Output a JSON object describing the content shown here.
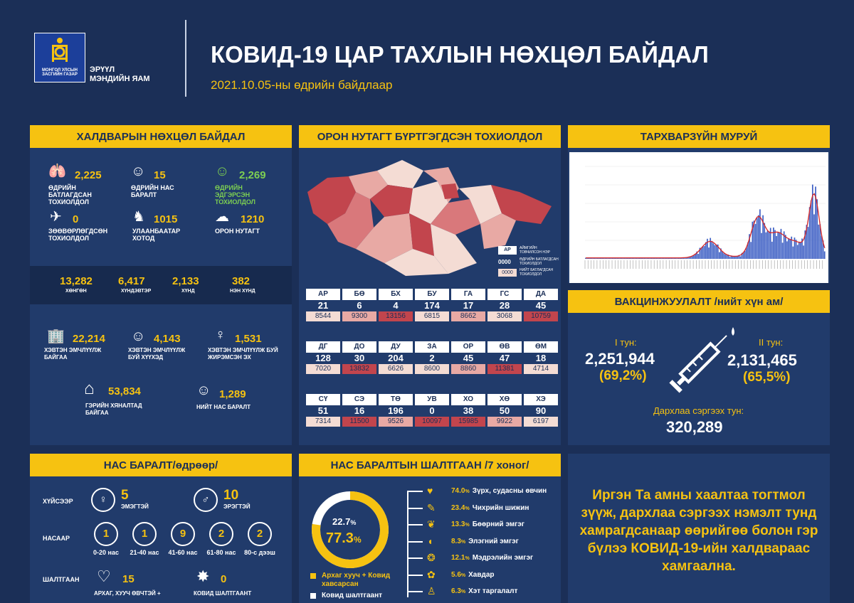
{
  "header": {
    "ministry_line1": "ЭРҮҮЛ",
    "ministry_line2": "МЭНДИЙН ЯАМ",
    "seal_line1": "МОНГОЛ УЛСЫН",
    "seal_line2": "ЗАСГИЙН ГАЗАР",
    "title": "КОВИД-19 ЦАР ТАХЛЫН НӨХЦӨЛ БАЙДАЛ",
    "subtitle": "2021.10.05-ны өдрийн байдлаар"
  },
  "infection": {
    "heading": "ХАЛДВАРЫН НӨХЦӨЛ БАЙДАЛ",
    "daily_cases": {
      "value": "2,225",
      "label": "ӨДРИЙН БАТЛАГДСАН ТОХИОЛДОЛ"
    },
    "daily_deaths": {
      "value": "15",
      "label": "ӨДРИЙН НАС БАРАЛТ"
    },
    "daily_recovered": {
      "value": "2,269",
      "label": "ӨДРИЙН ЭДГЭРСЭН ТОХИОЛДОЛ"
    },
    "imported": {
      "value": "0",
      "label": "ЗӨӨВӨРЛӨГДСӨН ТОХИОЛДОЛ"
    },
    "ulaanbaatar": {
      "value": "1015",
      "label": "УЛААНБААТАР ХОТОД"
    },
    "rural": {
      "value": "1210",
      "label": "ОРОН НУТАГТ"
    },
    "severity": [
      {
        "value": "13,282",
        "label": "ХӨНГӨН"
      },
      {
        "value": "6,417",
        "label": "ХҮНДЭВТЭР"
      },
      {
        "value": "2,133",
        "label": "ХҮНД"
      },
      {
        "value": "382",
        "label": "НЭН ХҮНД"
      }
    ],
    "hospital": {
      "value": "22,214",
      "label": "ХЭВТЭН ЭМЧЛҮҮЛЖ БАЙГАА"
    },
    "children": {
      "value": "4,143",
      "label": "ХЭВТЭН ЭМЧЛҮҮЛЖ БУЙ ХҮҮХЭД"
    },
    "pregnant": {
      "value": "1,531",
      "label": "ХЭВТЭН ЭМЧЛҮҮЛЖ БУЙ ЖИРЭМСЭН ЭХ"
    },
    "home": {
      "value": "53,834",
      "label": "ГЭРИЙН ХЯНАЛТАД БАЙГАА"
    },
    "total_deaths": {
      "value": "1,289",
      "label": "НИЙТ НАС БАРАЛТ"
    }
  },
  "regional": {
    "heading": "ОРОН НУТАГТ БҮРТГЭГДСЭН ТОХИОЛДОЛ",
    "legend_code": "АР",
    "legend_line1": "АЙМГИЙН ТОВЧИЛСОН НЭР",
    "legend_zero1": "0000",
    "legend_line2": "ӨДРИЙН БАТЛАГДСАН ТОХИОЛДОЛ",
    "legend_zero2": "0000",
    "legend_line3": "НИЙТ БАТЛАГДСАН ТОХИОЛДОЛ",
    "rows": [
      [
        {
          "c": "АР",
          "d": "21",
          "t": "8544"
        },
        {
          "c": "БӨ",
          "d": "6",
          "t": "9300"
        },
        {
          "c": "БХ",
          "d": "4",
          "t": "13156"
        },
        {
          "c": "БУ",
          "d": "174",
          "t": "6815"
        },
        {
          "c": "ГА",
          "d": "17",
          "t": "8662"
        },
        {
          "c": "ГС",
          "d": "28",
          "t": "3068"
        },
        {
          "c": "ДА",
          "d": "45",
          "t": "10759"
        }
      ],
      [
        {
          "c": "ДГ",
          "d": "128",
          "t": "7020"
        },
        {
          "c": "ДО",
          "d": "30",
          "t": "13832"
        },
        {
          "c": "ДУ",
          "d": "204",
          "t": "6626"
        },
        {
          "c": "ЗА",
          "d": "2",
          "t": "8600"
        },
        {
          "c": "ОР",
          "d": "45",
          "t": "8860"
        },
        {
          "c": "ӨВ",
          "d": "47",
          "t": "11381"
        },
        {
          "c": "ӨМ",
          "d": "18",
          "t": "4714"
        }
      ],
      [
        {
          "c": "СҮ",
          "d": "51",
          "t": "7314"
        },
        {
          "c": "СЭ",
          "d": "16",
          "t": "11500"
        },
        {
          "c": "ТӨ",
          "d": "196",
          "t": "9526"
        },
        {
          "c": "УВ",
          "d": "0",
          "t": "10097"
        },
        {
          "c": "ХО",
          "d": "38",
          "t": "15985"
        },
        {
          "c": "ХӨ",
          "d": "50",
          "t": "9922"
        },
        {
          "c": "ХЭ",
          "d": "90",
          "t": "6197"
        }
      ]
    ]
  },
  "curve": {
    "heading": "ТАРХВАРЗҮЙН МУРУЙ"
  },
  "vaccine": {
    "heading": "ВАКЦИНЖУУЛАЛТ /нийт хүн ам/",
    "dose1_label": "I тун:",
    "dose1_value": "2,251,944",
    "dose1_pct": "(69,2%)",
    "dose2_label": "II тун:",
    "dose2_value": "2,131,465",
    "dose2_pct": "(65,5%)",
    "booster_label": "Дархлаа сэргээх тун:",
    "booster_value": "320,289"
  },
  "deaths_daily": {
    "heading": "НАС БАРАЛТ/өдрөөр/",
    "by_sex": "ХҮЙСЭЭР",
    "female": {
      "value": "5",
      "label": "ЭМЭГТЭЙ"
    },
    "male": {
      "value": "10",
      "label": "ЭРЭГТЭЙ"
    },
    "by_age": "НАСААР",
    "ages": [
      {
        "value": "1",
        "label": "0-20 нас"
      },
      {
        "value": "1",
        "label": "21-40 нас"
      },
      {
        "value": "9",
        "label": "41-60 нас"
      },
      {
        "value": "2",
        "label": "61-80 нас"
      },
      {
        "value": "2",
        "label": "80-с дээш"
      }
    ],
    "by_cause": "ШАЛТГААН",
    "chronic": {
      "value": "15",
      "label": "АРХАГ, ХУУЧ ӨВЧТЭЙ +"
    },
    "covid_only": {
      "value": "0",
      "label": "КОВИД ШАЛТГААНТ"
    }
  },
  "causes": {
    "heading": "НАС БАРАЛТЫН ШАЛТГААН /7 хоног/",
    "donut_small": "22.7",
    "donut_big": "77.3",
    "pct_sign": "%",
    "donut_fraction": 0.773,
    "legend1": "Архаг хууч + Ковид хавсарсан",
    "legend2": "Ковид шалтгаант",
    "items": [
      {
        "pct": "74.0",
        "unit": "%",
        "label": "Зүрх, судасны өвчин"
      },
      {
        "pct": "23.4",
        "unit": "%",
        "label": "Чихрийн шижин"
      },
      {
        "pct": "13.3",
        "unit": "%",
        "label": "Бөөрний эмгэг"
      },
      {
        "pct": "8.3",
        "unit": "%",
        "label": "Элэгний эмгэг"
      },
      {
        "pct": "12.1",
        "unit": "%",
        "label": "Мэдрэлийн эмгэг"
      },
      {
        "pct": "5.6",
        "unit": "%",
        "label": "Хавдар"
      },
      {
        "pct": "6.3",
        "unit": "%",
        "label": "Хэт таргалалт"
      }
    ]
  },
  "message": "Иргэн Та амны хаалтаа тогтмол зүүж, дархлаа сэргээх нэмэлт тунд хамрагдсанаар өөрийгөө болон гэр бүлээ КОВИД-19-ийн халдвараас хамгаална.",
  "colors": {
    "accent": "#f6c211",
    "bg": "#1b2f57",
    "panel": "#213b6b",
    "green": "#7dcf52",
    "map_dark": "#c2454d",
    "map_light": "#f4dcd4"
  }
}
